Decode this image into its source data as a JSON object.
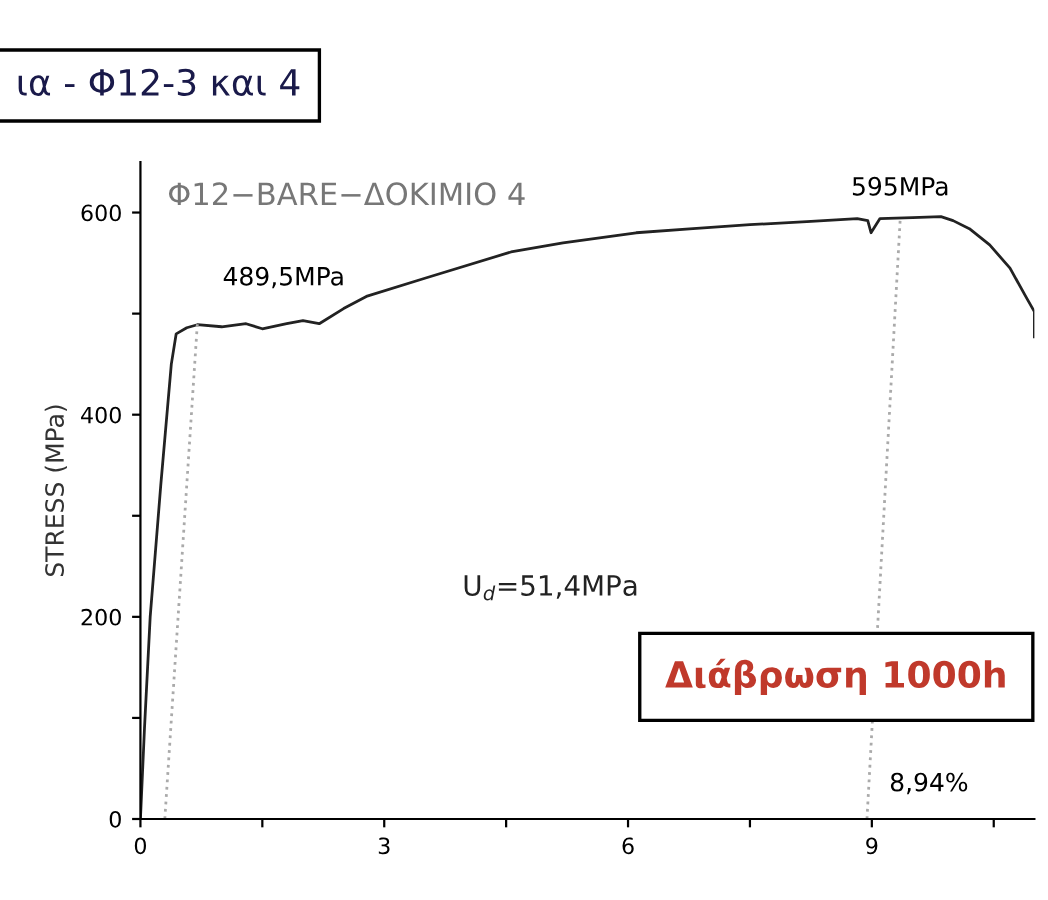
{
  "chart_data": {
    "type": "line",
    "title": "ια - Φ12-3 και 4",
    "ylabel": "STRESS (MPa)",
    "xlim": [
      0,
      11.0
    ],
    "xticks": [
      0,
      {
        "value": 1.5,
        "label": null
      },
      3,
      {
        "value": 4.5,
        "label": null
      },
      6,
      {
        "value": 7.5,
        "label": null
      },
      9,
      {
        "value": 10.5,
        "label": null
      }
    ],
    "ylim": [
      0,
      650
    ],
    "yticks": [
      0,
      {
        "value": 100,
        "label": null
      },
      200,
      {
        "value": 300,
        "label": null
      },
      400,
      {
        "value": 500,
        "label": null
      },
      600
    ],
    "grid": false,
    "legend": false,
    "series": [
      {
        "color": "#222222",
        "line_style": "solid",
        "x": [
          0,
          0.05,
          0.12,
          0.25,
          0.38,
          0.44,
          0.57,
          0.7,
          1.0,
          1.3,
          1.5,
          1.8,
          2.0,
          2.2,
          2.5,
          2.78,
          3.5,
          4.56,
          5.2,
          6.1,
          6.8,
          7.5,
          8.2,
          8.82,
          8.95,
          8.99,
          9.1,
          9.5,
          9.85,
          10.0,
          10.2,
          10.45,
          10.7,
          10.9,
          11.0,
          11.0
        ],
        "values": [
          0,
          90,
          200,
          330,
          450,
          480,
          486,
          489,
          487,
          490,
          485,
          490,
          493,
          490,
          505,
          517,
          535,
          561,
          570,
          580,
          584,
          588,
          591,
          594,
          592,
          580,
          594,
          595,
          596,
          592,
          584,
          568,
          545,
          516,
          502,
          477
        ]
      },
      {
        "color": "#aaaaaa",
        "line_style": "dotted",
        "x": [
          0.3,
          0.7
        ],
        "values": [
          0,
          489.5
        ]
      },
      {
        "color": "#aaaaaa",
        "line_style": "dotted",
        "x": [
          8.94,
          9.35
        ],
        "values": [
          0,
          595
        ]
      }
    ],
    "annotations": [
      "Φ12−BARE−ΔΟΚΙΜΙΟ 4",
      {
        "text": "489,5MPa",
        "x": 0.6,
        "y": 489.5
      },
      {
        "text": "595MPa",
        "x": 9.35,
        "y": 595
      },
      "U$_{d}$=51,4MPa",
      "Διάβρωση 1000h",
      {
        "text": "8,94%",
        "x": 8.94,
        "y": 0
      }
    ]
  }
}
